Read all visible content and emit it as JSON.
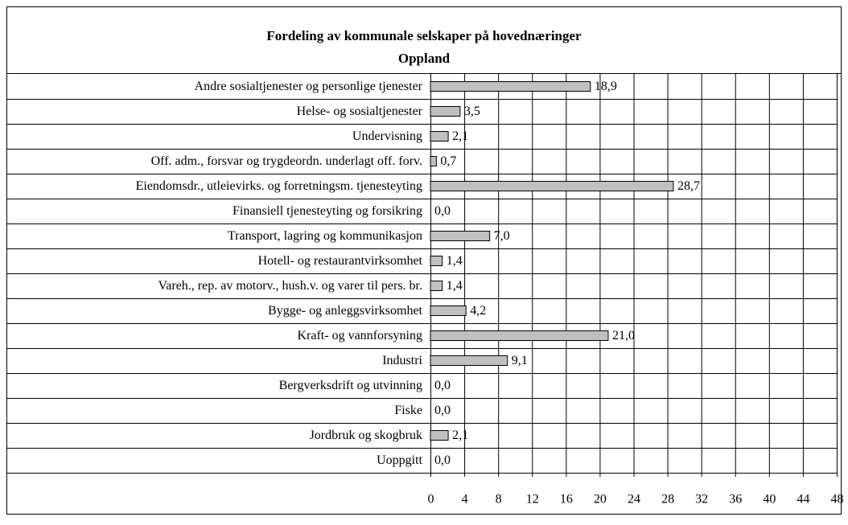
{
  "chart_data": {
    "type": "bar",
    "orientation": "horizontal",
    "title": "Fordeling av kommunale selskaper på hovednæringer",
    "subtitle": "Oppland",
    "categories": [
      "Andre sosialtjenester og personlige tjenester",
      "Helse- og sosialtjenester",
      "Undervisning",
      "Off. adm., forsvar og trygdeordn. underlagt off. forv.",
      "Eiendomsdr., utleievirks. og forretningsm. tjenesteyting",
      "Finansiell tjenesteyting og forsikring",
      "Transport, lagring og kommunikasjon",
      "Hotell- og restaurantvirksomhet",
      "Vareh., rep. av motorv., hush.v. og varer til pers. br.",
      "Bygge- og anleggsvirksomhet",
      "Kraft- og vannforsyning",
      "Industri",
      "Bergverksdrift og utvinning",
      "Fiske",
      "Jordbruk og skogbruk",
      "Uoppgitt"
    ],
    "values": [
      18.9,
      3.5,
      2.1,
      0.7,
      28.7,
      0.0,
      7.0,
      1.4,
      1.4,
      4.2,
      21.0,
      9.1,
      0.0,
      0.0,
      2.1,
      0.0
    ],
    "value_labels": [
      "18,9",
      "3,5",
      "2,1",
      "0,7",
      "28,7",
      "0,0",
      "7,0",
      "1,4",
      "1,4",
      "4,2",
      "21,0",
      "9,1",
      "0,0",
      "0,0",
      "2,1",
      "0,0"
    ],
    "color": "#c0c0c0",
    "xlim": [
      0,
      48
    ],
    "xticks": [
      0,
      4,
      8,
      12,
      16,
      20,
      24,
      28,
      32,
      36,
      40,
      44,
      48
    ],
    "grid": true
  }
}
